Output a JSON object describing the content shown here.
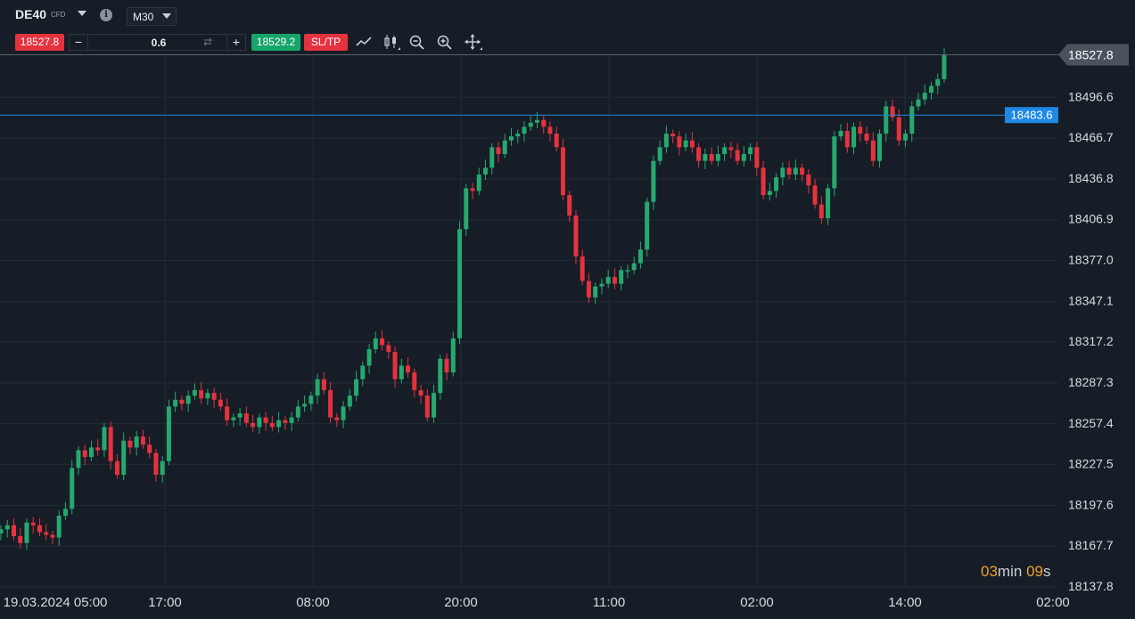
{
  "header": {
    "symbol": "DE40",
    "symbol_tag": "CFD",
    "info_icon": "info-icon",
    "timeframe": "M30"
  },
  "trade_bar": {
    "sell_price": "18527.8",
    "quantity": "0.6",
    "minus_label": "−",
    "plus_label": "+",
    "buy_price": "18529.2",
    "sltp_label": "SL/TP",
    "tools": [
      "line-chart-icon",
      "candlestick-icon",
      "zoom-out-icon",
      "zoom-in-icon",
      "move-icon"
    ]
  },
  "countdown": {
    "min_value": "03",
    "min_unit": "min",
    "sec_value": "09",
    "sec_unit": "s"
  },
  "colors": {
    "background": "#161d26",
    "bull": "#26a86f",
    "bear": "#e5323f",
    "level_line": "#1e88e5",
    "current_price_tag": "#4a535d",
    "countdown_digits": "#f0a030"
  },
  "chart_data": {
    "type": "candlestick",
    "timeframe": "M30",
    "y_ticks": [
      "18527.8",
      "18496.6",
      "18466.7",
      "18436.8",
      "18406.9",
      "18377.0",
      "18347.1",
      "18317.2",
      "18287.3",
      "18257.4",
      "18227.5",
      "18197.6",
      "18167.7",
      "18137.8"
    ],
    "ylim": [
      18137.8,
      18527.8
    ],
    "x_ticks": [
      "19.03.2024 05:00",
      "17:00",
      "08:00",
      "20:00",
      "11:00",
      "02:00",
      "14:00",
      "02:00"
    ],
    "current_price": 18527.8,
    "current_price_label": "18527.8",
    "horizontal_line": 18483.6,
    "horizontal_line_label": "18483.6",
    "grid": true,
    "closes": [
      18180,
      18183,
      18175,
      18170,
      18185,
      18183,
      18178,
      18176,
      18174,
      18190,
      18195,
      18225,
      18238,
      18233,
      18240,
      18238,
      18255,
      18230,
      18220,
      18245,
      18240,
      18248,
      18242,
      18236,
      18220,
      18230,
      18270,
      18275,
      18272,
      18278,
      18282,
      18276,
      18280,
      18275,
      18270,
      18260,
      18262,
      18265,
      18258,
      18255,
      18262,
      18258,
      18255,
      18260,
      18258,
      18262,
      18270,
      18272,
      18278,
      18290,
      18282,
      18262,
      18260,
      18270,
      18278,
      18290,
      18300,
      18312,
      18320,
      18315,
      18310,
      18290,
      18300,
      18295,
      18282,
      18278,
      18262,
      18280,
      18305,
      18295,
      18320,
      18400,
      18430,
      18428,
      18440,
      18445,
      18460,
      18455,
      18465,
      18468,
      18470,
      18475,
      18478,
      18480,
      18475,
      18470,
      18460,
      18425,
      18410,
      18380,
      18362,
      18350,
      18358,
      18360,
      18365,
      18360,
      18370,
      18370,
      18375,
      18385,
      18420,
      18450,
      18460,
      18470,
      18468,
      18460,
      18465,
      18460,
      18450,
      18455,
      18450,
      18455,
      18460,
      18458,
      18450,
      18455,
      18460,
      18445,
      18425,
      18428,
      18438,
      18445,
      18440,
      18445,
      18440,
      18432,
      18418,
      18408,
      18430,
      18468,
      18472,
      18460,
      18475,
      18470,
      18465,
      18450,
      18470,
      18490,
      18482,
      18465,
      18470,
      18490,
      18495,
      18500,
      18505,
      18510,
      18527.8
    ]
  }
}
